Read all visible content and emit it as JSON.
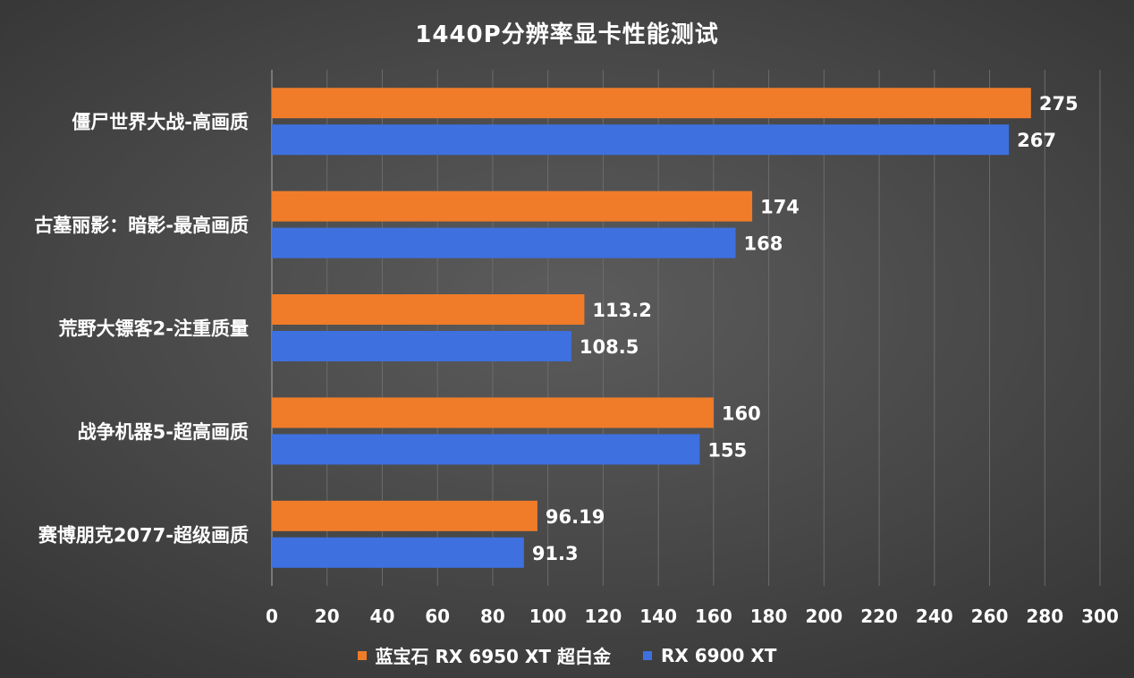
{
  "chart_data": {
    "type": "bar",
    "orientation": "horizontal",
    "title": "1440P分辨率显卡性能测试",
    "categories": [
      "僵尸世界大战-高画质",
      "古墓丽影：暗影-最高画质",
      "荒野大镖客2-注重质量",
      "战争机器5-超高画质",
      "赛博朋克2077-超级画质"
    ],
    "series": [
      {
        "name": "蓝宝石 RX 6950 XT 超白金",
        "color": "#f07c2a",
        "values": [
          275,
          174,
          113.2,
          160,
          96.19
        ],
        "labels": [
          "275",
          "174",
          "113.2",
          "160",
          "96.19"
        ]
      },
      {
        "name": "RX 6900 XT",
        "color": "#3e70e0",
        "values": [
          267,
          168,
          108.5,
          155,
          91.3
        ],
        "labels": [
          "267",
          "168",
          "108.5",
          "155",
          "91.3"
        ]
      }
    ],
    "xlim": [
      0,
      300
    ],
    "xticks": [
      "0",
      "20",
      "40",
      "60",
      "80",
      "100",
      "120",
      "140",
      "160",
      "180",
      "200",
      "220",
      "240",
      "260",
      "280",
      "300"
    ],
    "grid": true,
    "legend_position": "bottom"
  }
}
